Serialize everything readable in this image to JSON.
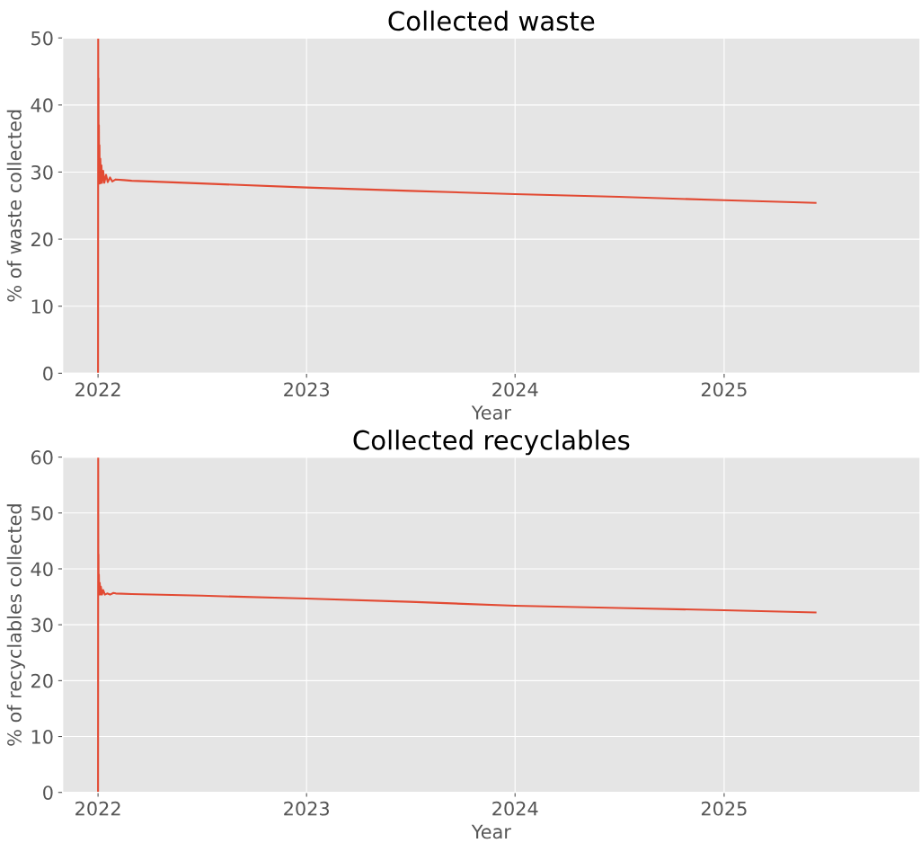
{
  "chart_data": [
    {
      "type": "line",
      "title": "Collected waste",
      "xlabel": "Year",
      "ylabel": "% of waste collected",
      "xlim": [
        "2021-10-31",
        "2025-12-10"
      ],
      "xticks": [
        "2022",
        "2023",
        "2024",
        "2025"
      ],
      "ylim": [
        0,
        50
      ],
      "yticks": [
        0,
        10,
        20,
        30,
        40,
        50
      ],
      "grid": true,
      "series": [
        {
          "color": "#e24a33",
          "x": [
            "2022-01-01T00:00",
            "2022-01-01T06:00",
            "2022-01-01T12:00",
            "2022-01-01T18:00",
            "2022-01-02T00:00",
            "2022-01-02T12:00",
            "2022-01-03T00:00",
            "2022-01-03T12:00",
            "2022-01-04T00:00",
            "2022-01-05T00:00",
            "2022-01-06T00:00",
            "2022-01-07T00:00",
            "2022-01-08T00:00",
            "2022-01-10T00:00",
            "2022-01-12T00:00",
            "2022-01-15T00:00",
            "2022-01-18T00:00",
            "2022-01-22T00:00",
            "2022-01-26T00:00",
            "2022-02-01",
            "2022-02-15",
            "2022-03-01",
            "2022-04-01",
            "2022-07-01",
            "2023-01-01",
            "2023-07-01",
            "2024-01-01",
            "2024-07-01",
            "2025-01-01",
            "2025-06-10"
          ],
          "values": [
            0,
            50,
            28.3,
            44,
            28.3,
            37,
            28.3,
            34,
            28.3,
            32,
            28.4,
            31,
            28.4,
            30.2,
            28.4,
            29.6,
            28.5,
            29.2,
            28.6,
            28.9,
            28.8,
            28.7,
            28.6,
            28.3,
            27.7,
            27.2,
            26.7,
            26.3,
            25.8,
            25.4
          ]
        }
      ]
    },
    {
      "type": "line",
      "title": "Collected recyclables",
      "xlabel": "Year",
      "ylabel": "% of recyclables collected",
      "xlim": [
        "2021-10-31",
        "2025-12-10"
      ],
      "xticks": [
        "2022",
        "2023",
        "2024",
        "2025"
      ],
      "ylim": [
        0,
        60
      ],
      "yticks": [
        0,
        10,
        20,
        30,
        40,
        50,
        60
      ],
      "grid": true,
      "series": [
        {
          "color": "#e24a33",
          "x": [
            "2022-01-01T00:00",
            "2022-01-01T06:00",
            "2022-01-01T12:00",
            "2022-01-01T18:00",
            "2022-01-02T00:00",
            "2022-01-02T12:00",
            "2022-01-03T00:00",
            "2022-01-04T00:00",
            "2022-01-05T00:00",
            "2022-01-06T00:00",
            "2022-01-08T00:00",
            "2022-01-10T00:00",
            "2022-01-13T00:00",
            "2022-01-17T00:00",
            "2022-01-22T00:00",
            "2022-01-28T00:00",
            "2022-02-01",
            "2022-03-01",
            "2022-07-01",
            "2023-01-01",
            "2023-07-01",
            "2024-01-01",
            "2024-07-01",
            "2025-01-01",
            "2025-06-10"
          ],
          "values": [
            0,
            60,
            35.5,
            42.6,
            35.5,
            39,
            35.4,
            37.5,
            35.4,
            36.8,
            35.4,
            36.2,
            35.4,
            35.6,
            35.4,
            35.7,
            35.6,
            35.5,
            35.2,
            34.7,
            34.1,
            33.4,
            33.0,
            32.6,
            32.2
          ]
        }
      ]
    }
  ]
}
